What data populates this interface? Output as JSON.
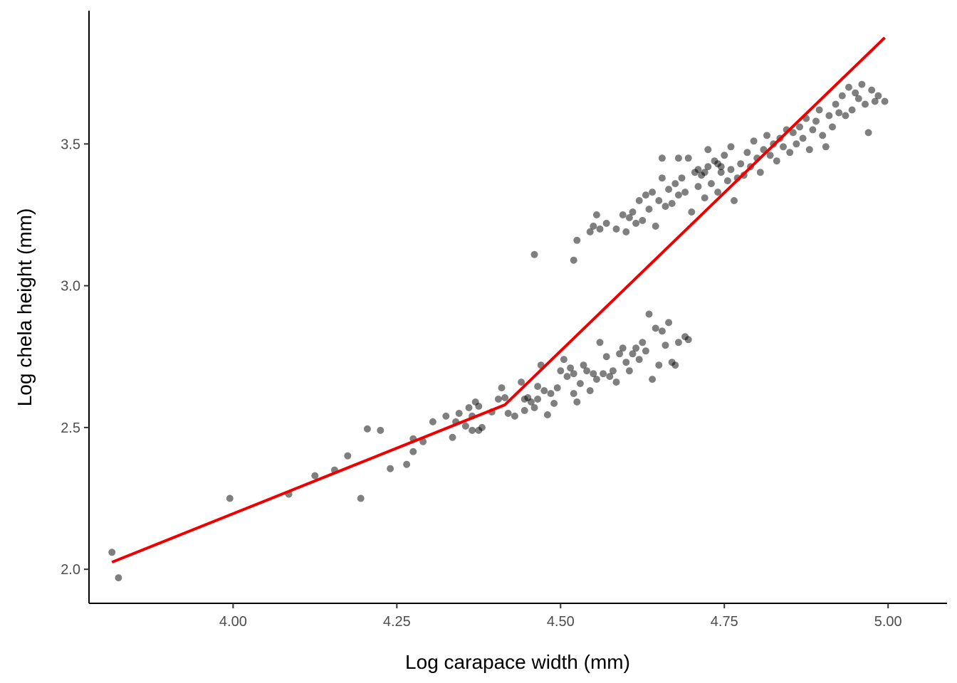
{
  "chart_data": {
    "type": "scatter",
    "title": "",
    "xlabel": "Log carapace width (mm)",
    "ylabel": "Log chela height (mm)",
    "xlim": [
      3.78,
      5.09
    ],
    "ylim": [
      1.88,
      3.97
    ],
    "x_ticks": [
      4.0,
      4.25,
      4.5,
      4.75,
      5.0
    ],
    "x_tick_labels": [
      "4.00",
      "4.25",
      "4.50",
      "4.75",
      "5.00"
    ],
    "y_ticks": [
      2.0,
      2.5,
      3.0,
      3.5
    ],
    "y_tick_labels": [
      "2.0",
      "2.5",
      "3.0",
      "3.5"
    ],
    "grid": false,
    "legend": "none",
    "colors": {
      "points": "#000000",
      "fit_line": "#ee0000",
      "axis": "#000000",
      "tick_text": "#4d4d4d"
    },
    "point_opacity": 0.5,
    "fit_line": {
      "type": "piecewise-linear",
      "points": [
        [
          3.815,
          2.025
        ],
        [
          4.415,
          2.58
        ],
        [
          4.995,
          3.875
        ]
      ]
    },
    "series": [
      {
        "values": [
          [
            3.815,
            2.06
          ],
          [
            3.825,
            1.97
          ],
          [
            3.995,
            2.25
          ],
          [
            4.085,
            2.265
          ],
          [
            4.125,
            2.33
          ],
          [
            4.155,
            2.35
          ],
          [
            4.175,
            2.4
          ],
          [
            4.195,
            2.25
          ],
          [
            4.205,
            2.495
          ],
          [
            4.225,
            2.49
          ],
          [
            4.24,
            2.355
          ],
          [
            4.265,
            2.37
          ],
          [
            4.275,
            2.415
          ],
          [
            4.275,
            2.46
          ],
          [
            4.29,
            2.45
          ],
          [
            4.305,
            2.52
          ],
          [
            4.325,
            2.54
          ],
          [
            4.335,
            2.465
          ],
          [
            4.34,
            2.52
          ],
          [
            4.345,
            2.55
          ],
          [
            4.355,
            2.505
          ],
          [
            4.36,
            2.57
          ],
          [
            4.365,
            2.54
          ],
          [
            4.37,
            2.59
          ],
          [
            4.375,
            2.575
          ],
          [
            4.365,
            2.49
          ],
          [
            4.375,
            2.49
          ],
          [
            4.38,
            2.5
          ],
          [
            4.395,
            2.555
          ],
          [
            4.405,
            2.6
          ],
          [
            4.41,
            2.64
          ],
          [
            4.415,
            2.605
          ],
          [
            4.42,
            2.55
          ],
          [
            4.43,
            2.54
          ],
          [
            4.44,
            2.66
          ],
          [
            4.445,
            2.6
          ],
          [
            4.445,
            2.56
          ],
          [
            4.45,
            2.605
          ],
          [
            4.455,
            2.59
          ],
          [
            4.46,
            2.57
          ],
          [
            4.465,
            2.6
          ],
          [
            4.465,
            2.645
          ],
          [
            4.47,
            2.72
          ],
          [
            4.475,
            2.63
          ],
          [
            4.48,
            2.545
          ],
          [
            4.485,
            2.62
          ],
          [
            4.49,
            2.585
          ],
          [
            4.495,
            2.64
          ],
          [
            4.5,
            2.7
          ],
          [
            4.505,
            2.74
          ],
          [
            4.51,
            2.68
          ],
          [
            4.515,
            2.71
          ],
          [
            4.52,
            2.69
          ],
          [
            4.52,
            2.62
          ],
          [
            4.525,
            2.59
          ],
          [
            4.53,
            2.655
          ],
          [
            4.535,
            2.72
          ],
          [
            4.54,
            2.7
          ],
          [
            4.545,
            2.63
          ],
          [
            4.55,
            2.69
          ],
          [
            4.555,
            2.67
          ],
          [
            4.56,
            2.8
          ],
          [
            4.565,
            2.69
          ],
          [
            4.57,
            2.75
          ],
          [
            4.575,
            2.68
          ],
          [
            4.58,
            2.7
          ],
          [
            4.585,
            2.66
          ],
          [
            4.59,
            2.76
          ],
          [
            4.595,
            2.78
          ],
          [
            4.6,
            2.73
          ],
          [
            4.605,
            2.7
          ],
          [
            4.61,
            2.76
          ],
          [
            4.615,
            2.78
          ],
          [
            4.62,
            2.74
          ],
          [
            4.625,
            2.8
          ],
          [
            4.63,
            2.77
          ],
          [
            4.635,
            2.9
          ],
          [
            4.64,
            2.67
          ],
          [
            4.645,
            2.85
          ],
          [
            4.65,
            2.72
          ],
          [
            4.655,
            2.84
          ],
          [
            4.66,
            2.79
          ],
          [
            4.665,
            2.87
          ],
          [
            4.67,
            2.73
          ],
          [
            4.675,
            2.72
          ],
          [
            4.68,
            2.8
          ],
          [
            4.69,
            2.82
          ],
          [
            4.695,
            2.81
          ],
          [
            4.46,
            3.11
          ],
          [
            4.52,
            3.09
          ],
          [
            4.525,
            3.16
          ],
          [
            4.545,
            3.19
          ],
          [
            4.55,
            3.21
          ],
          [
            4.555,
            3.25
          ],
          [
            4.56,
            3.2
          ],
          [
            4.57,
            3.22
          ],
          [
            4.585,
            3.2
          ],
          [
            4.595,
            3.25
          ],
          [
            4.6,
            3.19
          ],
          [
            4.605,
            3.24
          ],
          [
            4.61,
            3.26
          ],
          [
            4.615,
            3.22
          ],
          [
            4.62,
            3.3
          ],
          [
            4.625,
            3.23
          ],
          [
            4.63,
            3.32
          ],
          [
            4.635,
            3.27
          ],
          [
            4.64,
            3.33
          ],
          [
            4.645,
            3.21
          ],
          [
            4.65,
            3.3
          ],
          [
            4.655,
            3.38
          ],
          [
            4.66,
            3.28
          ],
          [
            4.665,
            3.34
          ],
          [
            4.67,
            3.29
          ],
          [
            4.675,
            3.36
          ],
          [
            4.68,
            3.32
          ],
          [
            4.685,
            3.38
          ],
          [
            4.69,
            3.33
          ],
          [
            4.695,
            3.45
          ],
          [
            4.7,
            3.26
          ],
          [
            4.705,
            3.4
          ],
          [
            4.71,
            3.35
          ],
          [
            4.715,
            3.39
          ],
          [
            4.72,
            3.31
          ],
          [
            4.725,
            3.42
          ],
          [
            4.73,
            3.36
          ],
          [
            4.735,
            3.44
          ],
          [
            4.74,
            3.33
          ],
          [
            4.745,
            3.4
          ],
          [
            4.75,
            3.46
          ],
          [
            4.755,
            3.37
          ],
          [
            4.76,
            3.41
          ],
          [
            4.765,
            3.3
          ],
          [
            4.77,
            3.38
          ],
          [
            4.775,
            3.43
          ],
          [
            4.78,
            3.39
          ],
          [
            4.785,
            3.47
          ],
          [
            4.79,
            3.42
          ],
          [
            4.795,
            3.51
          ],
          [
            4.8,
            3.45
          ],
          [
            4.805,
            3.4
          ],
          [
            4.81,
            3.48
          ],
          [
            4.815,
            3.53
          ],
          [
            4.82,
            3.46
          ],
          [
            4.825,
            3.5
          ],
          [
            4.83,
            3.44
          ],
          [
            4.835,
            3.52
          ],
          [
            4.84,
            3.49
          ],
          [
            4.845,
            3.55
          ],
          [
            4.85,
            3.47
          ],
          [
            4.855,
            3.54
          ],
          [
            4.86,
            3.5
          ],
          [
            4.865,
            3.56
          ],
          [
            4.87,
            3.52
          ],
          [
            4.875,
            3.59
          ],
          [
            4.88,
            3.48
          ],
          [
            4.885,
            3.55
          ],
          [
            4.89,
            3.58
          ],
          [
            4.895,
            3.62
          ],
          [
            4.9,
            3.53
          ],
          [
            4.905,
            3.49
          ],
          [
            4.91,
            3.6
          ],
          [
            4.915,
            3.56
          ],
          [
            4.92,
            3.64
          ],
          [
            4.925,
            3.61
          ],
          [
            4.93,
            3.67
          ],
          [
            4.935,
            3.6
          ],
          [
            4.94,
            3.7
          ],
          [
            4.945,
            3.62
          ],
          [
            4.95,
            3.68
          ],
          [
            4.955,
            3.66
          ],
          [
            4.96,
            3.71
          ],
          [
            4.965,
            3.64
          ],
          [
            4.97,
            3.54
          ],
          [
            4.975,
            3.69
          ],
          [
            4.98,
            3.65
          ],
          [
            4.985,
            3.67
          ],
          [
            4.995,
            3.65
          ],
          [
            4.655,
            3.45
          ],
          [
            4.68,
            3.45
          ],
          [
            4.71,
            3.41
          ],
          [
            4.725,
            3.48
          ],
          [
            4.74,
            3.43
          ],
          [
            4.76,
            3.49
          ],
          [
            4.72,
            3.4
          ],
          [
            4.745,
            3.42
          ]
        ]
      }
    ]
  }
}
